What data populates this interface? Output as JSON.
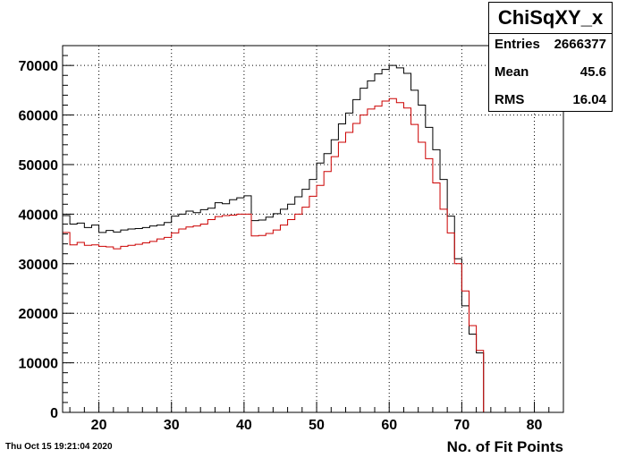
{
  "stats": {
    "title": "ChiSqXY_x",
    "rows": [
      {
        "label": "Entries",
        "value": "2666377"
      },
      {
        "label": "Mean",
        "value": "45.6"
      },
      {
        "label": "RMS",
        "value": "16.04"
      }
    ]
  },
  "footer": {
    "datestamp": "Thu Oct 15 19:21:04 2020"
  },
  "chart_data": {
    "type": "line",
    "title": "",
    "xlabel": "No. of Fit Points",
    "ylabel": "",
    "xlim": [
      15,
      84
    ],
    "ylim": [
      0,
      74000
    ],
    "xticks": [
      20,
      30,
      40,
      50,
      60,
      70,
      80
    ],
    "yticks": [
      0,
      10000,
      20000,
      30000,
      40000,
      50000,
      60000,
      70000
    ],
    "grid": true,
    "bin_width": 1,
    "series": [
      {
        "color": "#000000",
        "x": [
          15,
          16,
          17,
          18,
          19,
          20,
          21,
          22,
          23,
          24,
          25,
          26,
          27,
          28,
          29,
          30,
          31,
          32,
          33,
          34,
          35,
          36,
          37,
          38,
          39,
          40,
          41,
          42,
          43,
          44,
          45,
          46,
          47,
          48,
          49,
          50,
          51,
          52,
          53,
          54,
          55,
          56,
          57,
          58,
          59,
          60,
          61,
          62,
          63,
          64,
          65,
          66,
          67,
          68,
          69,
          70,
          71,
          72
        ],
        "values": [
          39700,
          38000,
          38200,
          37300,
          37800,
          36300,
          36700,
          36400,
          36800,
          37000,
          37100,
          37300,
          37600,
          37800,
          38300,
          39600,
          40000,
          40600,
          40300,
          40900,
          41200,
          42300,
          42100,
          42900,
          43300,
          43700,
          38700,
          38800,
          39400,
          40100,
          41000,
          42000,
          43500,
          45000,
          47000,
          50300,
          52200,
          55000,
          58200,
          60400,
          63100,
          65400,
          66900,
          68300,
          69200,
          70000,
          69500,
          68400,
          65000,
          62000,
          57500,
          53000,
          47000,
          39600,
          31000,
          21500,
          15800,
          12000
        ]
      },
      {
        "color": "#cc0000",
        "x": [
          15,
          16,
          17,
          18,
          19,
          20,
          21,
          22,
          23,
          24,
          25,
          26,
          27,
          28,
          29,
          30,
          31,
          32,
          33,
          34,
          35,
          36,
          37,
          38,
          39,
          40,
          41,
          42,
          43,
          44,
          45,
          46,
          47,
          48,
          49,
          50,
          51,
          52,
          53,
          54,
          55,
          56,
          57,
          58,
          59,
          60,
          61,
          62,
          63,
          64,
          65,
          66,
          67,
          68,
          69,
          70,
          71,
          72
        ],
        "values": [
          36300,
          33800,
          34300,
          33700,
          33800,
          33500,
          33400,
          33000,
          33500,
          33700,
          33900,
          34200,
          34500,
          35000,
          35300,
          36200,
          37000,
          37400,
          37600,
          38000,
          38900,
          39500,
          39700,
          39800,
          40000,
          40000,
          35600,
          35700,
          36100,
          36800,
          37800,
          38900,
          40000,
          41400,
          43600,
          45800,
          48600,
          51600,
          54500,
          56500,
          58300,
          60000,
          61200,
          61800,
          62800,
          63300,
          62500,
          61400,
          58100,
          54500,
          51200,
          46300,
          41000,
          36200,
          30000,
          24500,
          17500,
          12500
        ]
      }
    ]
  }
}
